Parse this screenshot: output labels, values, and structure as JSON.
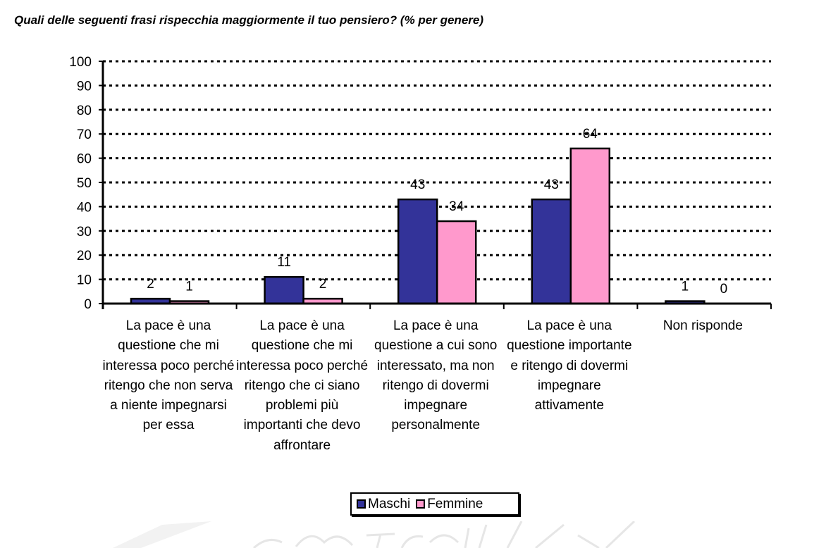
{
  "chart_data": {
    "type": "bar",
    "title": "Quali delle seguenti frasi rispecchia maggiormente il tuo pensiero? (% per genere)",
    "xlabel": "",
    "ylabel": "",
    "ylim": [
      0,
      100
    ],
    "yticks": [
      "0",
      "10",
      "20",
      "30",
      "40",
      "50",
      "60",
      "70",
      "80",
      "90",
      "100"
    ],
    "grid": true,
    "legend_position": "bottom",
    "categories": [
      "La pace è una questione che mi interessa poco perché ritengo che non serva a niente impegnarsi per essa",
      "La pace è una questione che mi interessa poco perché ritengo che ci siano problemi più importanti che devo affrontare",
      "La pace è una questione a cui sono interessato, ma non ritengo di dovermi impegnare personalmente",
      "La pace è una questione importante e ritengo di dovermi impegnare attivamente",
      "Non risponde"
    ],
    "series": [
      {
        "name": "Maschi",
        "color": "#333399",
        "values": [
          2,
          11,
          43,
          43,
          1
        ]
      },
      {
        "name": "Femmine",
        "color": "#ff99cc",
        "values": [
          1,
          2,
          34,
          64,
          0
        ]
      }
    ]
  }
}
